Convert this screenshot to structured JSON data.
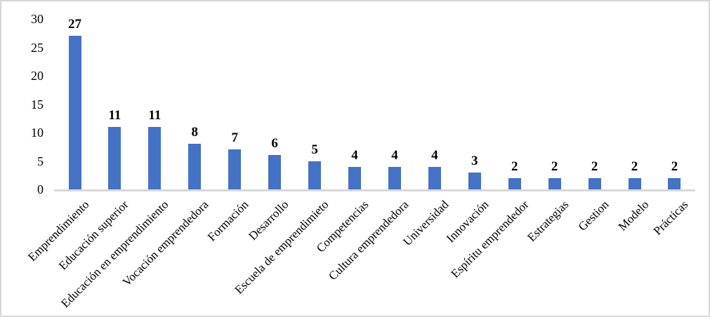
{
  "chart_data": {
    "type": "bar",
    "title": "",
    "xlabel": "",
    "ylabel": "",
    "categories": [
      "Emprendimiento",
      "Educación superior",
      "Educación en emprendimiento",
      "Vocación emprendedora",
      "Formación",
      "Desarrollo",
      "Escuela de emprendimieto",
      "Competencias",
      "Cultura emprendedora",
      "Universidad",
      "Innovación",
      "Espíritu emprendedor",
      "Estrategias",
      "Gestion",
      "Modelo",
      "Prácticas"
    ],
    "values": [
      27,
      11,
      11,
      8,
      7,
      6,
      5,
      4,
      4,
      4,
      3,
      2,
      2,
      2,
      2,
      2
    ],
    "data_labels": [
      "27",
      "11",
      "11",
      "8",
      "7",
      "6",
      "5",
      "4",
      "4",
      "4",
      "3",
      "2",
      "2",
      "2",
      "2",
      "2"
    ],
    "ylim": [
      0,
      30
    ],
    "yticks": [
      "0",
      "5",
      "10",
      "15",
      "20",
      "25",
      "30"
    ],
    "grid": false,
    "legend_position": "none",
    "x_label_rotation_deg": 45,
    "colors": {
      "bar": "#4472C4",
      "axis_line": "#D9D9D9",
      "text": "#000000",
      "frame_border": "#D6D6D6",
      "background": "#FFFFFF"
    }
  }
}
